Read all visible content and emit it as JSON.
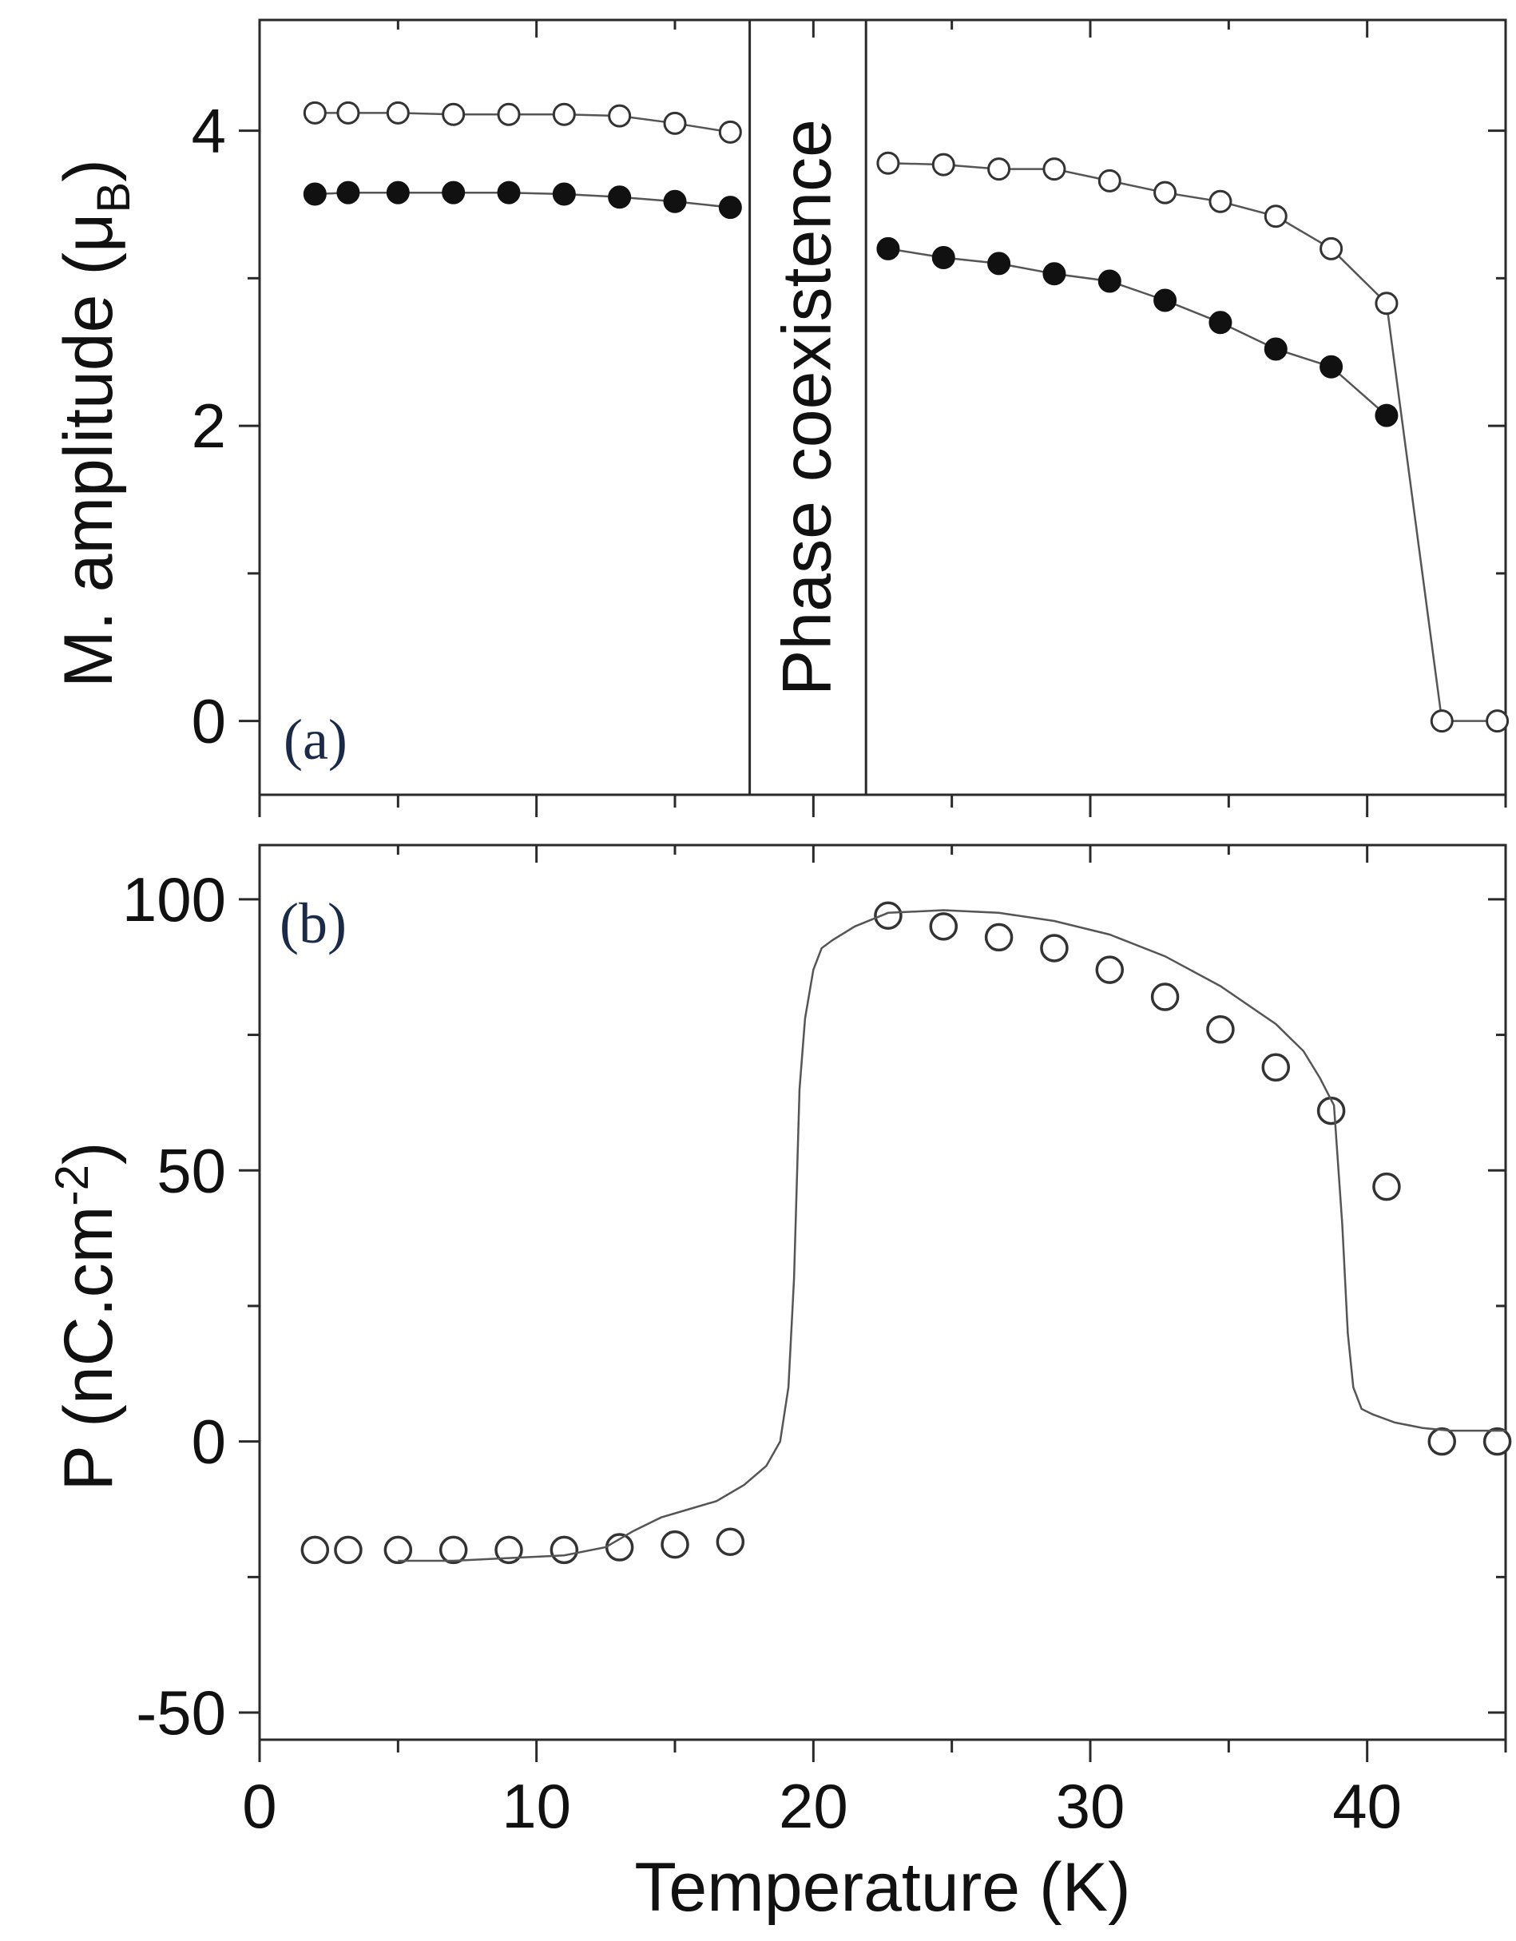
{
  "figure": {
    "x_axis_title": "Temperature (K)",
    "colors": {
      "axes": "#2a2a2a",
      "line": "#555555",
      "marker_edge": "#333333",
      "filled": "#111111",
      "panel_letter": "#1c2a4a"
    }
  },
  "chart_data": [
    {
      "type": "scatter",
      "panel": "(a)",
      "ylabel_main": "M. amplitude (μ",
      "ylabel_sub": "B",
      "ylabel_close": ")",
      "xlim": [
        0,
        45
      ],
      "ylim": [
        -0.5,
        4.75
      ],
      "x_ticks": [
        0,
        10,
        20,
        30,
        40
      ],
      "x_minor_ticks": [
        5,
        15,
        25,
        35,
        45
      ],
      "y_ticks": [
        0,
        2,
        4
      ],
      "y_tick_labels": [
        "0",
        "2",
        "4"
      ],
      "y_minor_ticks": [
        1,
        3
      ],
      "annotation": {
        "text": "Phase coexistence",
        "x_range": [
          17.7,
          21.9
        ]
      },
      "series": [
        {
          "name": "open circles",
          "marker": "open",
          "connected": true,
          "segments": [
            {
              "x": [
                2,
                3.2,
                5,
                7,
                9,
                11,
                13,
                15,
                17
              ],
              "y": [
                4.12,
                4.12,
                4.12,
                4.11,
                4.11,
                4.11,
                4.1,
                4.05,
                3.99
              ]
            },
            {
              "x": [
                22.7,
                24.7,
                26.7,
                28.7,
                30.7,
                32.7,
                34.7,
                36.7,
                38.7,
                40.7,
                42.7,
                44.7
              ],
              "y": [
                3.78,
                3.77,
                3.74,
                3.74,
                3.66,
                3.58,
                3.52,
                3.42,
                3.2,
                2.83,
                0,
                0
              ]
            }
          ]
        },
        {
          "name": "filled circles",
          "marker": "filled",
          "connected": true,
          "segments": [
            {
              "x": [
                2,
                3.2,
                5,
                7,
                9,
                11,
                13,
                15,
                17
              ],
              "y": [
                3.57,
                3.58,
                3.58,
                3.58,
                3.58,
                3.57,
                3.55,
                3.52,
                3.48
              ]
            },
            {
              "x": [
                22.7,
                24.7,
                26.7,
                28.7,
                30.7,
                32.7,
                34.7,
                36.7,
                38.7,
                40.7
              ],
              "y": [
                3.2,
                3.14,
                3.1,
                3.03,
                2.98,
                2.85,
                2.7,
                2.52,
                2.4,
                2.07
              ]
            }
          ]
        }
      ]
    },
    {
      "type": "scatter",
      "panel": "(b)",
      "ylabel_main": "P (nC.cm",
      "ylabel_sup": "-2",
      "ylabel_close": ")",
      "xlim": [
        0,
        45
      ],
      "ylim": [
        -55,
        110
      ],
      "x_ticks": [
        0,
        10,
        20,
        30,
        40
      ],
      "x_tick_labels": [
        "0",
        "10",
        "20",
        "30",
        "40"
      ],
      "x_minor_ticks": [
        5,
        15,
        25,
        35,
        45
      ],
      "y_ticks": [
        -50,
        0,
        50,
        100
      ],
      "y_tick_labels": [
        "-50",
        "0",
        "50",
        "100"
      ],
      "y_minor_ticks": [
        -25,
        25,
        75
      ],
      "series": [
        {
          "name": "measured P",
          "marker": "open",
          "connected": false,
          "x": [
            2,
            3.2,
            5,
            7,
            9,
            11,
            13,
            15,
            17,
            22.7,
            24.7,
            26.7,
            28.7,
            30.7,
            32.7,
            34.7,
            36.7,
            38.7,
            40.7,
            42.7,
            44.7
          ],
          "y": [
            -20,
            -20,
            -20,
            -20,
            -20,
            -20,
            -19.5,
            -19,
            -18.5,
            97,
            95,
            93,
            91,
            87,
            82,
            76,
            69,
            61,
            47,
            0,
            0
          ]
        },
        {
          "name": "curve",
          "marker": "none",
          "connected": true,
          "x": [
            5,
            7,
            9,
            11,
            12.5,
            13.5,
            14.5,
            15.5,
            16.5,
            17.5,
            18.3,
            18.8,
            19.1,
            19.3,
            19.5,
            19.7,
            20.0,
            20.3,
            20.7,
            21.5,
            22.7,
            24.7,
            26.7,
            28.7,
            30.7,
            32.7,
            34.7,
            36.7,
            37.7,
            38.3,
            38.8,
            39.1,
            39.3,
            39.5,
            39.8,
            40.2,
            41.0,
            42.0,
            43.0,
            44.0,
            45.0
          ],
          "y": [
            -22,
            -22,
            -21.5,
            -21,
            -19.5,
            -16.5,
            -14,
            -12.5,
            -11,
            -8,
            -4.5,
            0,
            10,
            30,
            65,
            78,
            87,
            91,
            92.5,
            95,
            97.5,
            98,
            97.5,
            96,
            93.5,
            89.5,
            84,
            77,
            72,
            67,
            62,
            40,
            20,
            10,
            6,
            5,
            3.5,
            2.5,
            2,
            2,
            2
          ]
        }
      ]
    }
  ]
}
